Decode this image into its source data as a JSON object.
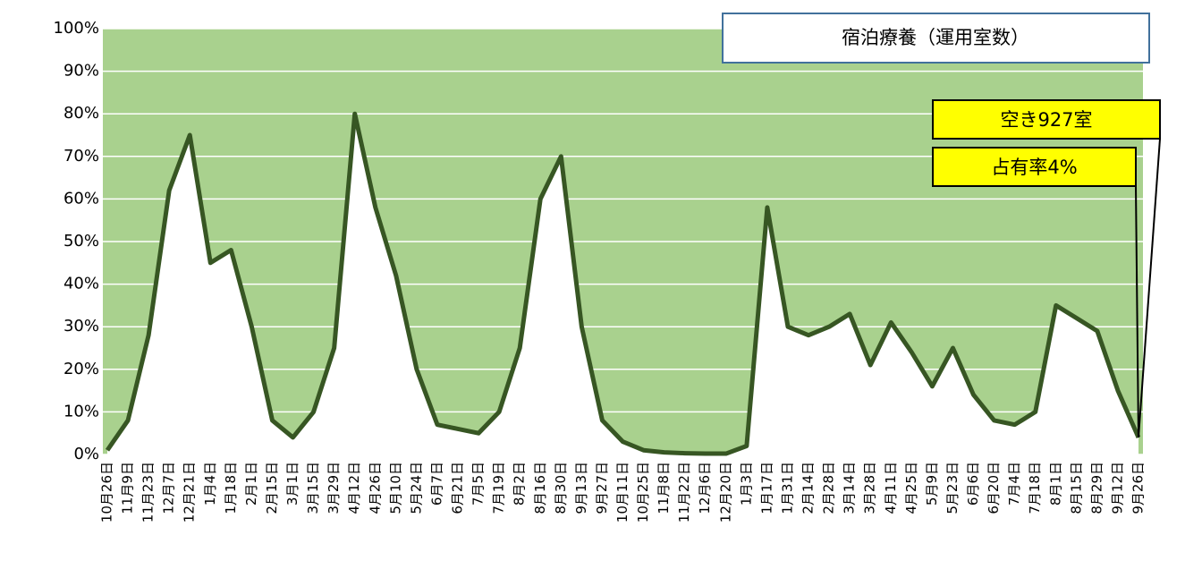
{
  "chart_data": {
    "type": "line",
    "title": "宿泊療養（運用室数）",
    "annotations": [
      "空き927室",
      "占有率4%"
    ],
    "categories": [
      "10月26日",
      "11月9日",
      "11月23日",
      "12月7日",
      "12月21日",
      "1月4日",
      "1月18日",
      "2月1日",
      "2月15日",
      "3月1日",
      "3月15日",
      "3月29日",
      "4月12日",
      "4月26日",
      "5月10日",
      "5月24日",
      "6月7日",
      "6月21日",
      "7月5日",
      "7月19日",
      "8月2日",
      "8月16日",
      "8月30日",
      "9月13日",
      "9月27日",
      "10月11日",
      "10月25日",
      "11月8日",
      "11月22日",
      "12月6日",
      "12月20日",
      "1月3日",
      "1月17日",
      "1月31日",
      "2月14日",
      "2月28日",
      "3月14日",
      "3月28日",
      "4月11日",
      "4月25日",
      "5月9日",
      "5月23日",
      "6月6日",
      "6月20日",
      "7月4日",
      "7月18日",
      "8月1日",
      "8月15日",
      "8月29日",
      "9月12日",
      "9月26日"
    ],
    "series": [
      {
        "name": "占有率",
        "color": "#375623",
        "values": [
          1,
          8,
          28,
          62,
          75,
          45,
          48,
          30,
          8,
          4,
          10,
          25,
          80,
          58,
          42,
          20,
          7,
          6,
          5,
          10,
          25,
          60,
          70,
          30,
          8,
          3,
          1,
          0.5,
          0.3,
          0.2,
          0.2,
          2,
          58,
          30,
          28,
          30,
          33,
          21,
          31,
          24,
          16,
          25,
          14,
          8,
          7,
          10,
          35,
          32,
          29,
          15,
          4
        ]
      }
    ],
    "ylim": [
      0,
      100
    ],
    "yticks": [
      {
        "value": 0,
        "label": "0%"
      },
      {
        "value": 10,
        "label": "10%"
      },
      {
        "value": 20,
        "label": "20%"
      },
      {
        "value": 30,
        "label": "30%"
      },
      {
        "value": 40,
        "label": "40%"
      },
      {
        "value": 50,
        "label": "50%"
      },
      {
        "value": 60,
        "label": "60%"
      },
      {
        "value": 70,
        "label": "70%"
      },
      {
        "value": 80,
        "label": "80%"
      },
      {
        "value": 90,
        "label": "90%"
      },
      {
        "value": 100,
        "label": "100%"
      }
    ],
    "grid": true,
    "plot_color": "#a9d18e",
    "area_color": "#ffffff"
  }
}
